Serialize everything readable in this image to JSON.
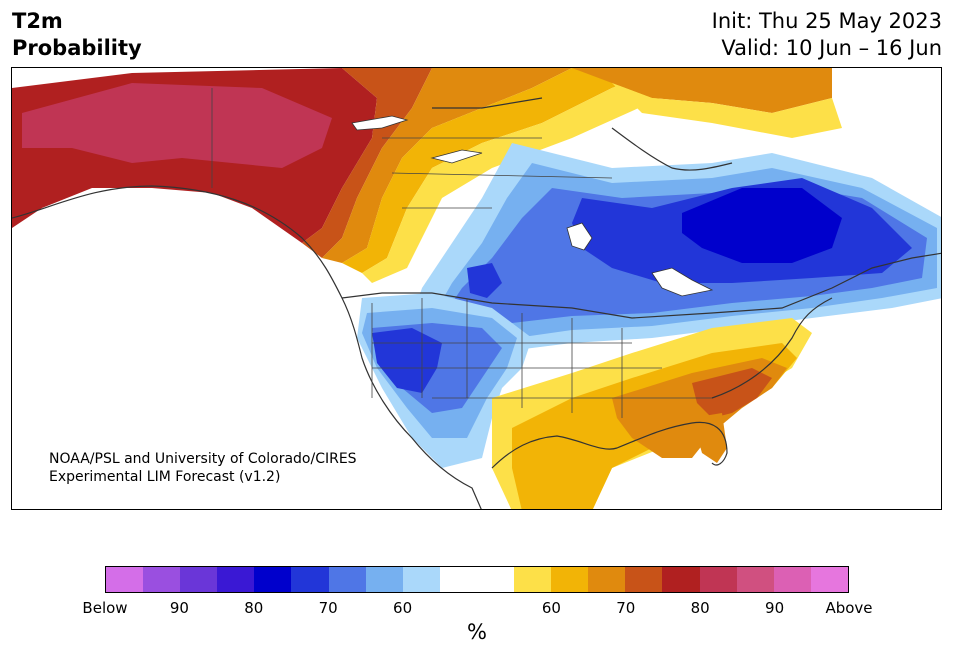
{
  "header": {
    "title_line1": "T2m",
    "title_line2": "Probability",
    "init": "Init: Thu 25 May 2023",
    "valid": "Valid: 10 Jun – 16 Jun"
  },
  "map": {
    "credit_line1": "NOAA/PSL and University of Colorado/CIRES",
    "credit_line2": "Experimental LIM Forecast (v1.2)"
  },
  "legend": {
    "unit": "%",
    "colors": [
      "#d46ee8",
      "#9a4fe0",
      "#6a36d8",
      "#3a18d4",
      "#0000cc",
      "#2236d8",
      "#4f76e6",
      "#76b0f0",
      "#aad8fa",
      "#ffffff",
      "#ffffff",
      "#fde048",
      "#f2b406",
      "#e08a0e",
      "#c85318",
      "#b02020",
      "#c03554",
      "#d05080",
      "#dc60b4",
      "#e676de"
    ],
    "tick_labels": [
      "Below",
      "90",
      "80",
      "70",
      "60",
      "60",
      "70",
      "80",
      "90",
      "Above"
    ],
    "tick_positions": [
      0,
      2,
      4,
      6,
      8,
      12,
      14,
      16,
      18,
      20
    ]
  }
}
